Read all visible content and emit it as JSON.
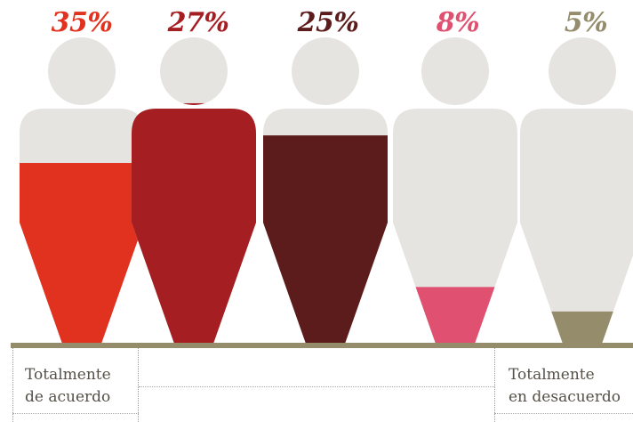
{
  "chart_data": {
    "type": "pictogram",
    "categories": [
      "Totalmente de acuerdo",
      "",
      "",
      "",
      "Totalmente en desacuerdo"
    ],
    "values": [
      35,
      27,
      25,
      8,
      5
    ],
    "labels": [
      "35%",
      "27%",
      "25%",
      "8%",
      "5%"
    ],
    "colors": [
      "#e0321e",
      "#a51e22",
      "#5c1c1c",
      "#e05070",
      "#958c6c"
    ],
    "empty_color": "#e6e4e0",
    "fill_fraction": [
      0.59,
      0.785,
      0.68,
      0.185,
      0.105
    ]
  },
  "legend_left": {
    "line1": "Totalmente",
    "line2": "de acuerdo"
  },
  "legend_right": {
    "line1": "Totalmente",
    "line2": "en desacuerdo"
  }
}
